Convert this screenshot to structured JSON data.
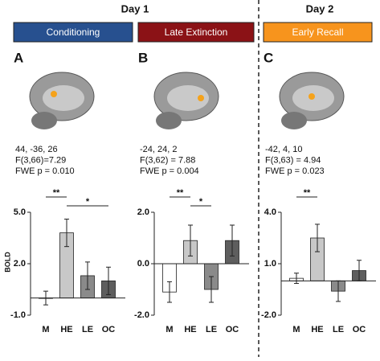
{
  "days": [
    "Day 1",
    "Day 2"
  ],
  "chart_data": [
    {
      "type": "bar",
      "panel": "A",
      "condition": "Conditioning",
      "condition_color": "#27508f",
      "annotations": [
        "44, -36, 26",
        "F(3,66)=7.29",
        "FWE p = 0.010"
      ],
      "ylabel": "BOLD",
      "categories": [
        "M",
        "HE",
        "LE",
        "OC"
      ],
      "values": [
        0,
        3.8,
        1.3,
        1.0
      ],
      "errors": [
        0.4,
        0.8,
        0.8,
        0.8
      ],
      "colors": [
        "#ffffff",
        "#c8c8c8",
        "#8a8a8a",
        "#5e5e5e"
      ],
      "ylim": [
        -1,
        5
      ],
      "yticks": [
        {
          "value": -1,
          "label": "-1.0"
        },
        {
          "value": 2,
          "label": "2.0"
        },
        {
          "value": 5,
          "label": "5.0"
        }
      ],
      "significance": [
        {
          "label": "**",
          "categories": [
            "M",
            "HE"
          ]
        },
        {
          "label": "*",
          "categories": [
            "HE",
            "OC"
          ]
        }
      ]
    },
    {
      "type": "bar",
      "panel": "B",
      "condition": "Late Extinction",
      "condition_color": "#8b1216",
      "annotations": [
        "-24, 24, 2",
        "F(3,62) = 7.88",
        "FWE p = 0.004"
      ],
      "categories": [
        "M",
        "HE",
        "LE",
        "OC"
      ],
      "values": [
        -1.1,
        0.9,
        -1.0,
        0.9
      ],
      "errors": [
        0.4,
        0.6,
        0.5,
        0.6
      ],
      "colors": [
        "#ffffff",
        "#c8c8c8",
        "#8a8a8a",
        "#5e5e5e"
      ],
      "ylim": [
        -2,
        2
      ],
      "yticks": [
        {
          "value": -2,
          "label": "-2.0"
        },
        {
          "value": 0,
          "label": "0.0"
        },
        {
          "value": 2,
          "label": "2.0"
        }
      ],
      "significance": [
        {
          "label": "**",
          "categories": [
            "M",
            "HE"
          ]
        },
        {
          "label": "*",
          "categories": [
            "HE",
            "LE"
          ]
        }
      ]
    },
    {
      "type": "bar",
      "panel": "C",
      "condition": "Early Recall",
      "condition_color": "#f7941d",
      "annotations": [
        "-42, 4, 10",
        "F(3,63) = 4.94",
        "FWE p = 0.023"
      ],
      "categories": [
        "M",
        "HE",
        "LE",
        "OC"
      ],
      "values": [
        0.15,
        2.5,
        -0.6,
        0.6
      ],
      "errors": [
        0.3,
        0.8,
        0.6,
        0.6
      ],
      "colors": [
        "#ffffff",
        "#c8c8c8",
        "#8a8a8a",
        "#5e5e5e"
      ],
      "ylim": [
        -2,
        4
      ],
      "yticks": [
        {
          "value": -2,
          "label": "-2.0"
        },
        {
          "value": 1,
          "label": "1.0"
        },
        {
          "value": 4,
          "label": "4.0"
        }
      ],
      "significance": [
        {
          "label": "**",
          "categories": [
            "M",
            "HE"
          ]
        }
      ]
    }
  ]
}
